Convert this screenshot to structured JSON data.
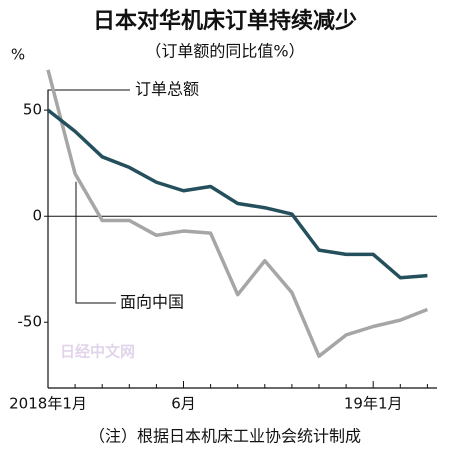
{
  "chart_data": {
    "type": "line",
    "title": "日本对华机床订单持续减少",
    "subtitle": "（订单额的同比值%）",
    "y_label": "%",
    "footnote": "（注）根据日本机床工业协会统计制成",
    "watermark": "日经中文网",
    "categories": [
      "2018年1月",
      null,
      null,
      null,
      null,
      "6月",
      null,
      null,
      null,
      null,
      null,
      null,
      "19年1月",
      null,
      null
    ],
    "series": [
      {
        "name": "订单总额",
        "color": "#24505e",
        "values": [
          50,
          40,
          28,
          23,
          16,
          12,
          14,
          6,
          4,
          1,
          -16,
          -18,
          -18,
          -29,
          -28
        ]
      },
      {
        "name": "面向中国",
        "color": "#a6a6a6",
        "values": [
          69,
          20,
          -2,
          -2,
          -9,
          -7,
          -8,
          -37,
          -21,
          -36,
          -66,
          -56,
          -52,
          -49,
          -44
        ]
      }
    ],
    "ylim": [
      -81,
      76
    ],
    "yticks": [
      50,
      0,
      -50
    ]
  }
}
